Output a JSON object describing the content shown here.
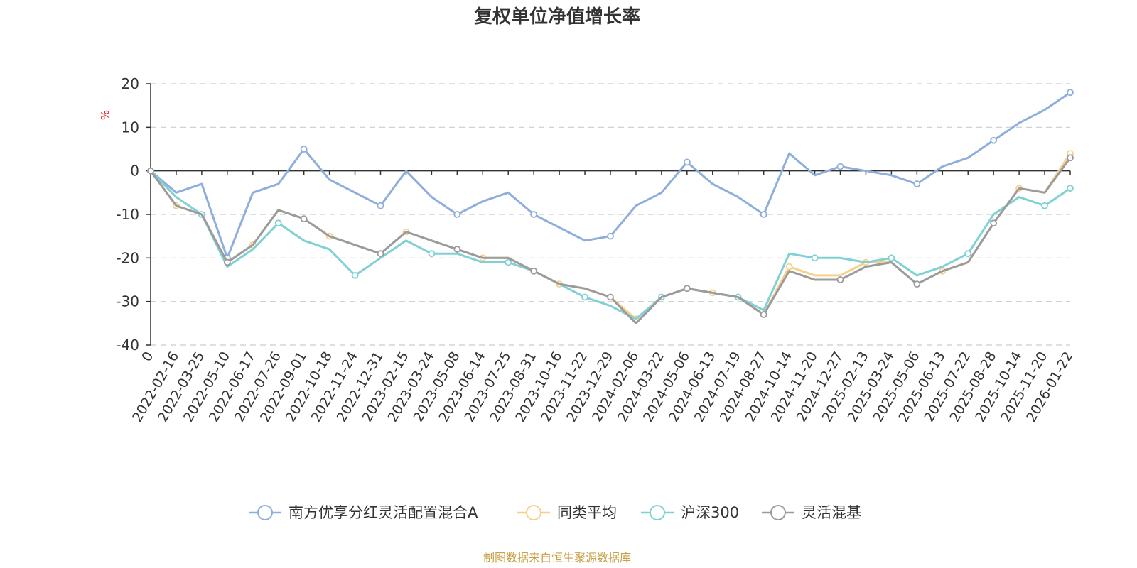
{
  "chart_data": {
    "type": "line",
    "title": "复权单位净值增长率",
    "ylabel": "%",
    "ylim": [
      -40,
      20
    ],
    "yticks": [
      20,
      10,
      0,
      -10,
      -20,
      -30,
      -40
    ],
    "categories": [
      "0",
      "2022-02-16",
      "2022-03-25",
      "2022-05-10",
      "2022-06-17",
      "2022-07-26",
      "2022-09-01",
      "2022-10-18",
      "2022-11-24",
      "2022-12-31",
      "2023-02-15",
      "2023-03-24",
      "2023-05-08",
      "2023-06-14",
      "2023-07-25",
      "2023-08-31",
      "2023-10-16",
      "2023-11-22",
      "2023-12-29",
      "2024-02-06",
      "2024-03-22",
      "2024-05-06",
      "2024-06-13",
      "2024-07-19",
      "2024-08-27",
      "2024-10-14",
      "2024-11-20",
      "2024-12-27",
      "2025-02-13",
      "2025-03-24",
      "2025-05-06",
      "2025-06-13",
      "2025-07-22",
      "2025-08-28",
      "2025-10-14",
      "2025-11-20",
      "2026-01-22"
    ],
    "series": [
      {
        "name": "南方优享分红灵活配置混合A",
        "color": "#8eaedb",
        "values": [
          0,
          -5,
          -3,
          -20,
          -5,
          -3,
          5,
          -2,
          -5,
          -8,
          0,
          -6,
          -10,
          -7,
          -5,
          -10,
          -13,
          -16,
          -15,
          -8,
          -5,
          2,
          -3,
          -6,
          -10,
          4,
          -1,
          1,
          0,
          -1,
          -3,
          1,
          3,
          7,
          11,
          14,
          18
        ]
      },
      {
        "name": "同类平均",
        "color": "#f7d08a",
        "values": [
          0,
          -8,
          -10,
          -21,
          -17,
          -9,
          -11,
          -15,
          -17,
          -19,
          -14,
          -16,
          -18,
          -20,
          -20,
          -23,
          -26,
          -27,
          -29,
          -34,
          -29,
          -27,
          -28,
          -29,
          -33,
          -22,
          -24,
          -24,
          -21,
          -21,
          -26,
          -23,
          -21,
          -12,
          -4,
          -5,
          4
        ]
      },
      {
        "name": "沪深300",
        "color": "#7fd1d6",
        "values": [
          0,
          -6,
          -10,
          -22,
          -18,
          -12,
          -16,
          -18,
          -24,
          -20,
          -16,
          -19,
          -19,
          -21,
          -21,
          -23,
          -26,
          -29,
          -31,
          -34,
          -29,
          -27,
          -28,
          -29,
          -32,
          -19,
          -20,
          -20,
          -21,
          -20,
          -24,
          -22,
          -19,
          -10,
          -6,
          -8,
          -4
        ]
      },
      {
        "name": "灵活混基",
        "color": "#9b9b9b",
        "values": [
          0,
          -8,
          -10,
          -21,
          -17,
          -9,
          -11,
          -15,
          -17,
          -19,
          -14,
          -16,
          -18,
          -20,
          -20,
          -23,
          -26,
          -27,
          -29,
          -35,
          -29,
          -27,
          -28,
          -29,
          -33,
          -23,
          -25,
          -25,
          -22,
          -21,
          -26,
          -23,
          -21,
          -12,
          -4,
          -5,
          3
        ]
      }
    ]
  },
  "footer": {
    "source": "制图数据来自恒生聚源数据库"
  }
}
